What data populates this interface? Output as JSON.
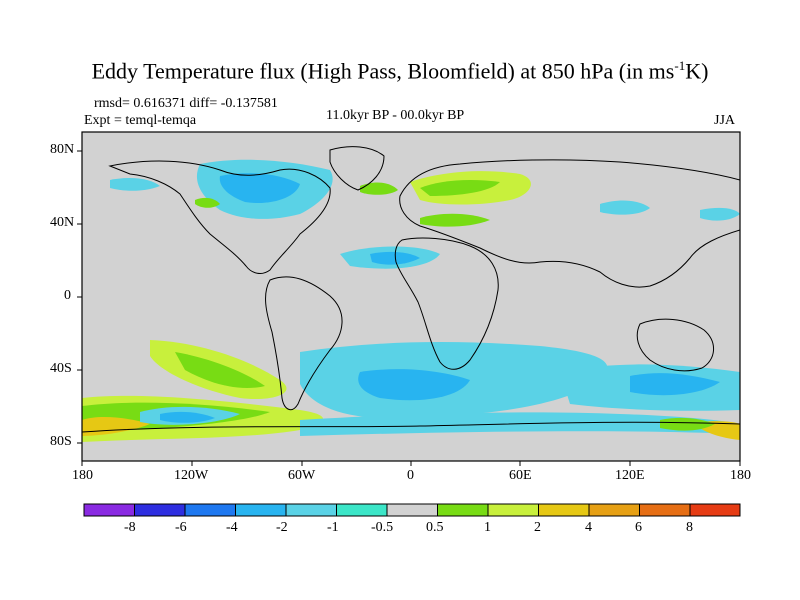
{
  "title": {
    "main": "Eddy Temperature flux (High Pass, Bloomfield) at 850 hPa (in ms",
    "sup": "-1",
    "end": "K)"
  },
  "stats": "rmsd= 0.616371 diff= -0.137581",
  "experiment": "Expt = temql-temqa",
  "period": "11.0kyr BP - 00.0kyr BP",
  "season": "JJA",
  "axes": {
    "lon_labels": [
      "180",
      "120W",
      "60W",
      "0",
      "60E",
      "120E",
      "180"
    ],
    "lat_labels": [
      "80N",
      "40N",
      "0",
      "40S",
      "80S"
    ],
    "lon_range": [
      -180,
      180
    ],
    "lat_range": [
      -90,
      90
    ]
  },
  "colorbar": {
    "labels": [
      "-8",
      "-6",
      "-4",
      "-2",
      "-1",
      "-0.5",
      "0.5",
      "1",
      "2",
      "4",
      "6",
      "8"
    ],
    "colors": [
      "#8a2be2",
      "#2e2ee0",
      "#1e78f0",
      "#28b4f0",
      "#5ad2e6",
      "#3ce6c8",
      "#d2d2d2",
      "#78dc14",
      "#c8f03c",
      "#e6c814",
      "#e6a014",
      "#e66e14",
      "#e63c14"
    ]
  },
  "colors": {
    "background": "#d2d2d2",
    "coast": "#000000"
  }
}
